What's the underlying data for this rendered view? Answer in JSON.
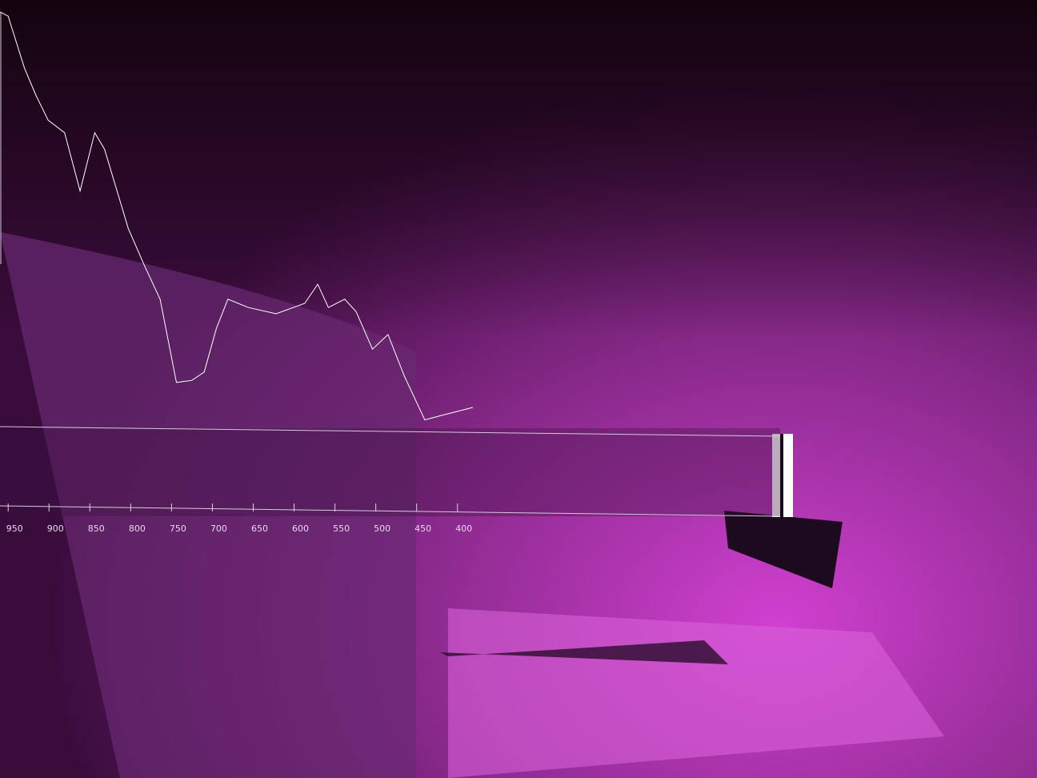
{
  "chart_data": {
    "type": "line",
    "x": [
      960,
      950,
      930,
      916,
      901,
      881,
      862,
      844,
      832,
      803,
      783,
      764,
      744,
      725,
      710,
      695,
      681,
      656,
      622,
      587,
      571,
      558,
      538,
      524,
      504,
      485,
      465,
      440,
      421,
      381
    ],
    "series": [
      {
        "color": "#ffffff",
        "values": [
          100,
          99,
          86.5,
          80,
          74,
          71,
          57,
          71,
          67,
          48,
          39,
          31,
          11,
          11.5,
          13.5,
          24,
          31,
          29,
          27.5,
          30,
          34.6,
          29,
          31,
          28,
          19,
          22.5,
          12.5,
          2,
          3,
          5
        ]
      }
    ],
    "xlim": [
      960,
      5
    ],
    "xticks": [
      950,
      900,
      850,
      800,
      750,
      700,
      650,
      600,
      550,
      500,
      450,
      400
    ],
    "ylim": [
      0,
      100
    ]
  }
}
